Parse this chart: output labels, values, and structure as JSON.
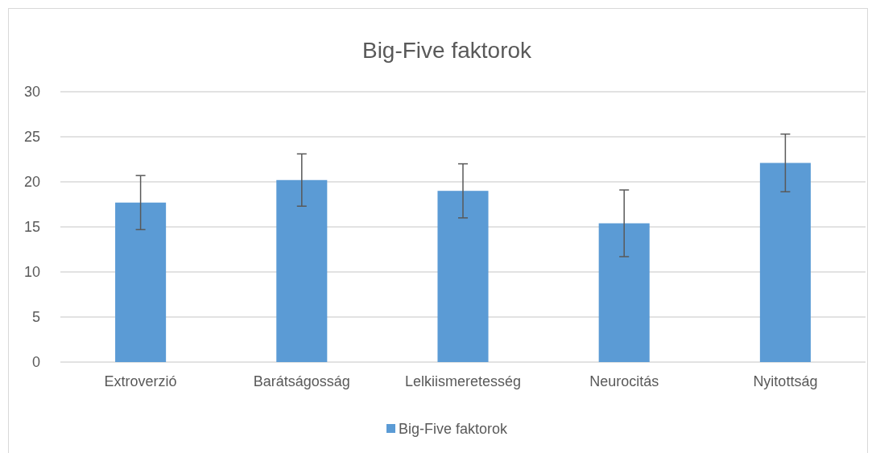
{
  "chart_data": {
    "type": "bar",
    "title": "Big-Five faktorok",
    "categories": [
      "Extroverzió",
      "Barátságosság",
      "Lelkiismeretesség",
      "Neurocitás",
      "Nyitottság"
    ],
    "series": [
      {
        "name": "Big-Five faktorok",
        "color": "#5b9bd5",
        "values": [
          17.7,
          20.2,
          19.0,
          15.4,
          22.1
        ],
        "errors": [
          3.0,
          2.9,
          3.0,
          3.7,
          3.2
        ]
      }
    ],
    "ylim": [
      0,
      30
    ],
    "yticks": [
      0,
      5,
      10,
      15,
      20,
      25,
      30
    ],
    "grid": "y",
    "legend": "bottom"
  }
}
